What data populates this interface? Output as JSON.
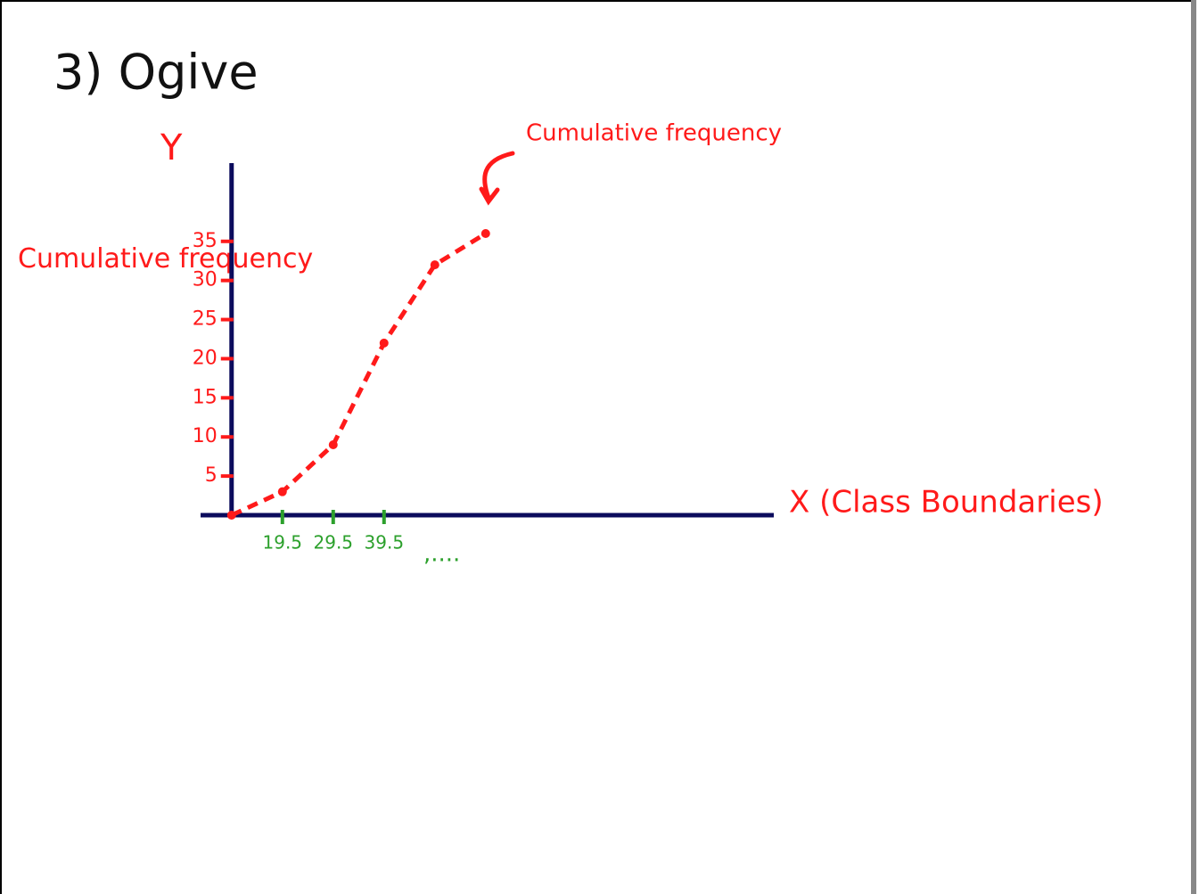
{
  "chart_data": {
    "type": "line",
    "title": "3) Ogive",
    "y_label": "Y",
    "y_axis_title": "Cumulative frequency",
    "x_label": "X (Class Boundaries)",
    "annotation": "Cumulative frequency",
    "x_continuation": ",....",
    "x": [
      9.5,
      19.5,
      29.5,
      39.5,
      49.5,
      59.5
    ],
    "values": [
      0,
      3,
      9,
      22,
      32,
      36
    ],
    "color": "#ff1a1a",
    "line_style": "dashed",
    "axis_color": "#0b0b5c",
    "x_tick_color": "#2ca02c",
    "xlim": [
      3.4,
      116.2
    ],
    "ylim": [
      0,
      45
    ],
    "xticks": [
      19.5,
      29.5,
      39.5
    ],
    "yticks": [
      5,
      10,
      15,
      20,
      25,
      30,
      35
    ]
  }
}
